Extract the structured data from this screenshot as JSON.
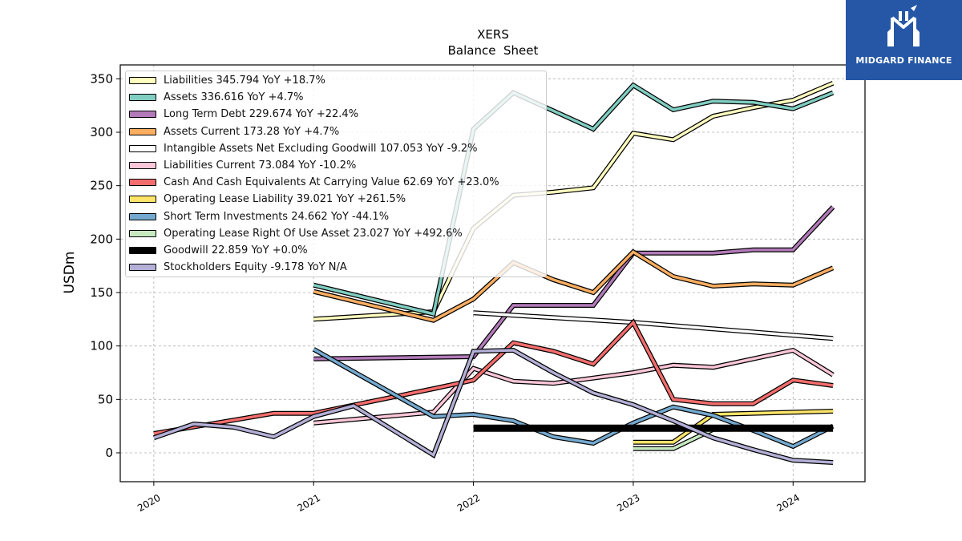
{
  "chart_data": {
    "type": "line",
    "title": "XERS",
    "subtitle": "Balance  Sheet",
    "ylabel": "USDm",
    "xlabel": "",
    "ylim": [
      -27,
      363
    ],
    "xlim": [
      2019.79,
      2024.45
    ],
    "yticks": [
      0,
      50,
      100,
      150,
      200,
      250,
      300,
      350
    ],
    "xticks": [
      2020,
      2021,
      2022,
      2023,
      2024
    ],
    "xtick_labels": [
      "2020",
      "2021",
      "2022",
      "2023",
      "2024"
    ],
    "grid": true,
    "legend_position": "top-left",
    "series": [
      {
        "name": "Liabilities",
        "legend": "Liabilities  345.794 YoY +18.7%",
        "color": "#ffffbf",
        "points": [
          [
            2021.0,
            125
          ],
          [
            2021.75,
            132
          ],
          [
            2022.0,
            210
          ],
          [
            2022.25,
            241
          ],
          [
            2022.5,
            244
          ],
          [
            2022.75,
            248
          ],
          [
            2023.0,
            299
          ],
          [
            2023.25,
            293
          ],
          [
            2023.5,
            315
          ],
          [
            2023.75,
            323
          ],
          [
            2024.0,
            330
          ],
          [
            2024.25,
            346
          ]
        ]
      },
      {
        "name": "Assets",
        "legend": "Assets  336.616 YoY +4.7%",
        "color": "#80cdc1",
        "points": [
          [
            2021.0,
            157
          ],
          [
            2021.75,
            130
          ],
          [
            2022.0,
            303
          ],
          [
            2022.25,
            337
          ],
          [
            2022.5,
            320
          ],
          [
            2022.75,
            303
          ],
          [
            2023.0,
            344
          ],
          [
            2023.25,
            321
          ],
          [
            2023.5,
            329
          ],
          [
            2023.75,
            328
          ],
          [
            2024.0,
            322
          ],
          [
            2024.25,
            337
          ]
        ]
      },
      {
        "name": "Long Term Debt",
        "legend": "Long Term Debt  229.674 YoY +22.4%",
        "color": "#b27ab8",
        "points": [
          [
            2021.0,
            88
          ],
          [
            2022.0,
            90
          ],
          [
            2022.25,
            138
          ],
          [
            2022.5,
            138
          ],
          [
            2022.75,
            138
          ],
          [
            2023.0,
            187
          ],
          [
            2023.25,
            187
          ],
          [
            2023.5,
            187
          ],
          [
            2023.75,
            190
          ],
          [
            2024.0,
            190
          ],
          [
            2024.25,
            230
          ]
        ]
      },
      {
        "name": "Assets Current",
        "legend": "Assets Current  173.28 YoY +4.7%",
        "color": "#fdae61",
        "points": [
          [
            2021.0,
            151
          ],
          [
            2021.75,
            124
          ],
          [
            2022.0,
            144
          ],
          [
            2022.25,
            178
          ],
          [
            2022.5,
            162
          ],
          [
            2022.75,
            150
          ],
          [
            2023.0,
            188
          ],
          [
            2023.25,
            165
          ],
          [
            2023.5,
            156
          ],
          [
            2023.75,
            158
          ],
          [
            2024.0,
            157
          ],
          [
            2024.25,
            173
          ]
        ]
      },
      {
        "name": "Intangible Assets Net Excluding Goodwill",
        "legend": "Intangible Assets Net Excluding Goodwill  107.053 YoY -9.2%",
        "color": "#ffffff",
        "points": [
          [
            2022.0,
            131
          ],
          [
            2023.0,
            122
          ],
          [
            2024.25,
            107
          ]
        ]
      },
      {
        "name": "Liabilities Current",
        "legend": "Liabilities Current  73.084 YoY -10.2%",
        "color": "#fbc6d8",
        "points": [
          [
            2021.0,
            28
          ],
          [
            2021.75,
            38
          ],
          [
            2022.0,
            79
          ],
          [
            2022.25,
            67
          ],
          [
            2022.5,
            65
          ],
          [
            2022.75,
            70
          ],
          [
            2023.0,
            75
          ],
          [
            2023.25,
            82
          ],
          [
            2023.5,
            80
          ],
          [
            2023.75,
            88
          ],
          [
            2024.0,
            96
          ],
          [
            2024.25,
            73
          ]
        ]
      },
      {
        "name": "Cash And Cash Equivalents At Carrying Value",
        "legend": "Cash And Cash Equivalents At Carrying Value  62.69 YoY +23.0%",
        "color": "#f46d6d",
        "points": [
          [
            2020.0,
            18
          ],
          [
            2020.75,
            37
          ],
          [
            2021.0,
            37
          ],
          [
            2021.75,
            60
          ],
          [
            2022.0,
            68
          ],
          [
            2022.25,
            103
          ],
          [
            2022.5,
            95
          ],
          [
            2022.75,
            83
          ],
          [
            2023.0,
            122
          ],
          [
            2023.25,
            50
          ],
          [
            2023.5,
            46
          ],
          [
            2023.75,
            46
          ],
          [
            2024.0,
            68
          ],
          [
            2024.25,
            63
          ]
        ]
      },
      {
        "name": "Operating Lease Liability",
        "legend": "Operating Lease Liability  39.021 YoY +261.5%",
        "color": "#fee569",
        "points": [
          [
            2023.0,
            10
          ],
          [
            2023.25,
            10
          ],
          [
            2023.5,
            36
          ],
          [
            2024.25,
            39
          ]
        ]
      },
      {
        "name": "Short Term Investments",
        "legend": "Short Term Investments  24.662 YoY -44.1%",
        "color": "#74a9cf",
        "points": [
          [
            2021.0,
            97
          ],
          [
            2021.75,
            34
          ],
          [
            2022.0,
            36
          ],
          [
            2022.25,
            30
          ],
          [
            2022.5,
            15
          ],
          [
            2022.75,
            9
          ],
          [
            2023.0,
            28
          ],
          [
            2023.25,
            43
          ],
          [
            2023.5,
            35
          ],
          [
            2023.75,
            21
          ],
          [
            2024.0,
            6
          ],
          [
            2024.25,
            25
          ]
        ]
      },
      {
        "name": "Operating Lease Right Of Use Asset",
        "legend": "Operating Lease Right Of Use Asset  23.027 YoY +492.6%",
        "color": "#c7e9c0",
        "points": [
          [
            2023.0,
            4
          ],
          [
            2023.25,
            4
          ],
          [
            2023.5,
            22
          ],
          [
            2024.25,
            23
          ]
        ]
      },
      {
        "name": "Goodwill",
        "legend": "Goodwill  22.859 YoY +0.0%",
        "color": "#000000",
        "points": [
          [
            2022.0,
            23
          ],
          [
            2024.25,
            23
          ]
        ]
      },
      {
        "name": "Stockholders Equity",
        "legend": "Stockholders Equity  -9.178 YoY N/A",
        "color": "#b3afd6",
        "points": [
          [
            2020.0,
            14
          ],
          [
            2020.25,
            27
          ],
          [
            2020.5,
            24
          ],
          [
            2020.75,
            15
          ],
          [
            2021.0,
            34
          ],
          [
            2021.25,
            44
          ],
          [
            2021.75,
            -2
          ],
          [
            2022.0,
            95
          ],
          [
            2022.25,
            96
          ],
          [
            2022.5,
            75
          ],
          [
            2022.75,
            56
          ],
          [
            2023.0,
            45
          ],
          [
            2023.25,
            30
          ],
          [
            2023.5,
            14
          ],
          [
            2023.75,
            3
          ],
          [
            2024.0,
            -7
          ],
          [
            2024.25,
            -9
          ]
        ]
      }
    ]
  },
  "logo": {
    "text": "MIDGARD FINANCE",
    "background": "#2557a6"
  }
}
